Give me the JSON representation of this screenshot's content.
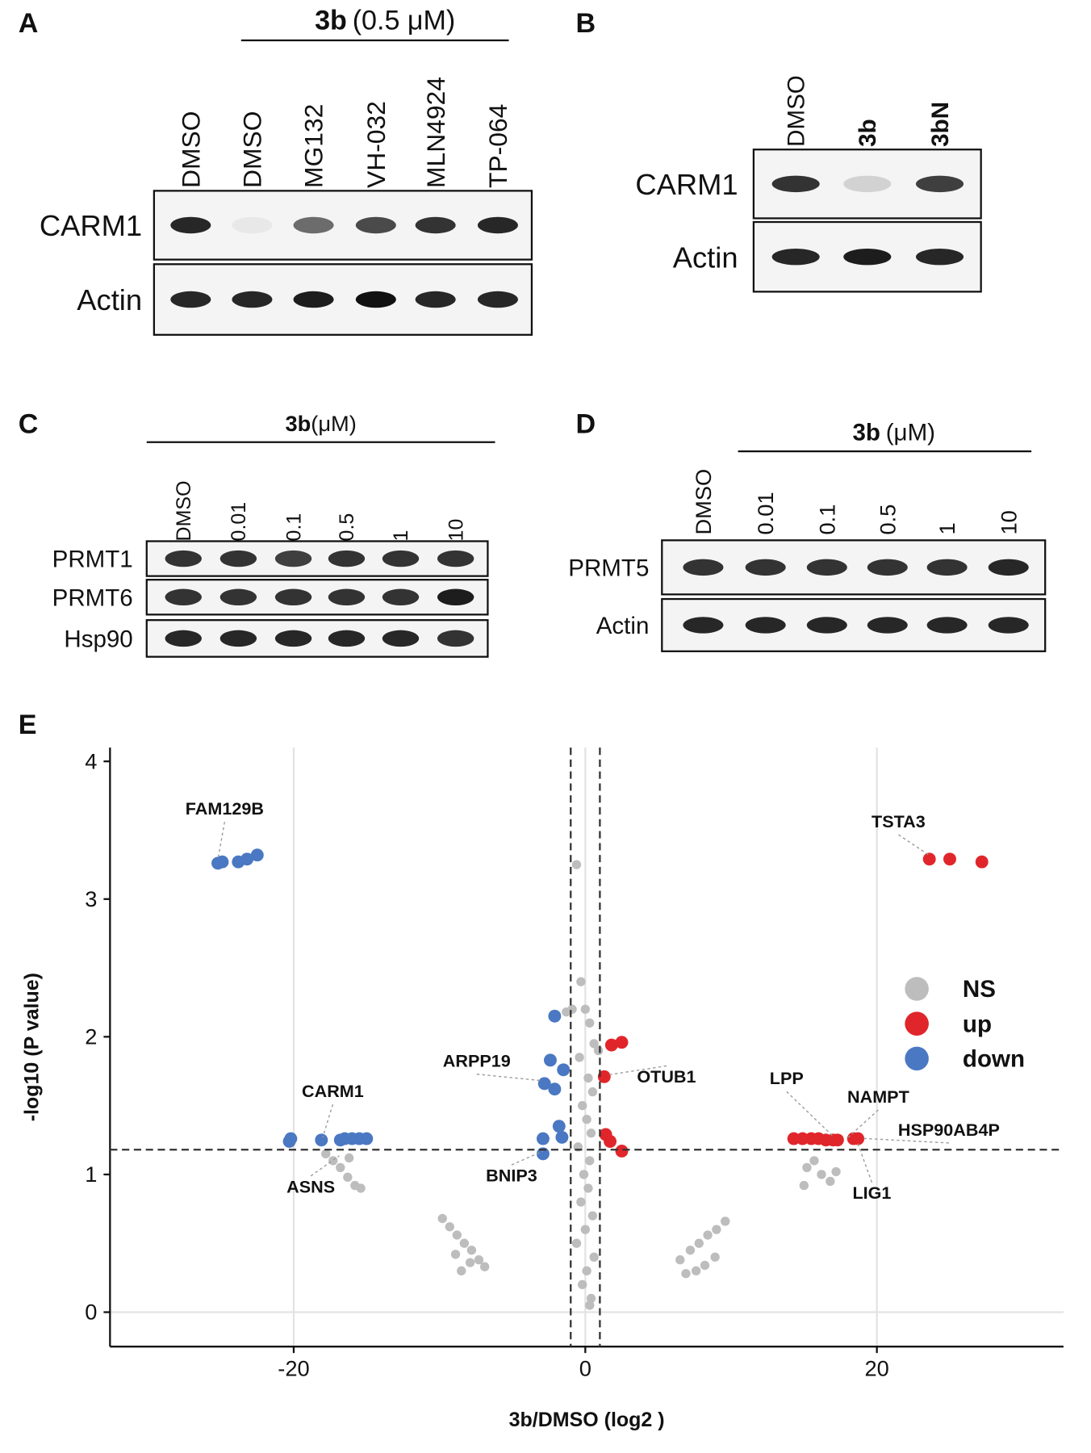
{
  "panels": {
    "A": {
      "letter": "A",
      "header_bold": "3b",
      "header_rest": "(0.5 μM)",
      "lanes": [
        "DMSO",
        "DMSO",
        "MG132",
        "VH-032",
        "MLN4924",
        "TP-064"
      ],
      "rows": [
        "CARM1",
        "Actin"
      ]
    },
    "B": {
      "letter": "B",
      "lanes": [
        "DMSO",
        "3b",
        "3bN"
      ],
      "rows": [
        "CARM1",
        "Actin"
      ]
    },
    "C": {
      "letter": "C",
      "header_bold": "3b",
      "header_rest": "(μM)",
      "lanes": [
        "DMSO",
        "0.01",
        "0.1",
        "0.5",
        "1",
        "10"
      ],
      "rows": [
        "PRMT1",
        "PRMT6",
        "Hsp90"
      ]
    },
    "D": {
      "letter": "D",
      "header_bold": "3b",
      "header_rest": "(μM)",
      "lanes": [
        "DMSO",
        "0.01",
        "0.1",
        "0.5",
        "1",
        "10"
      ],
      "rows": [
        "PRMT5",
        "Actin"
      ]
    }
  },
  "chart_data": {
    "type": "scatter",
    "panel_letter": "E",
    "x_label": "3b/DMSO (log2 )",
    "y_label": "-log10 (P value)",
    "xlim": [
      -32.6,
      32.8
    ],
    "ylim": [
      -0.25,
      4.1
    ],
    "xticks": [
      -20,
      0,
      20
    ],
    "yticks": [
      0,
      1,
      2,
      3,
      4
    ],
    "grid": true,
    "legend": "right",
    "thresholds": {
      "x": [
        -1,
        1
      ],
      "y": 1.18
    },
    "series": [
      {
        "name": "NS",
        "color": "#bdbdbd",
        "x": [
          -0.6,
          -0.3,
          0,
          0.3,
          0.6,
          -0.4,
          0.2,
          0.5,
          -0.2,
          0.1,
          0.4,
          -0.5,
          0.3,
          -0.1,
          0.2,
          -0.3,
          0.5,
          0.0,
          -0.6,
          0.6,
          0.1,
          -0.2,
          0.4,
          0.3,
          -1.3,
          -0.9,
          0.9,
          -9.8,
          -9.3,
          -8.8,
          -8.3,
          -7.8,
          -7.3,
          -6.9,
          -8.5,
          -7.9,
          -8.9,
          6.5,
          7.2,
          7.8,
          8.4,
          9.0,
          9.6,
          7.6,
          8.2,
          8.9,
          6.9,
          -17.8,
          -17.3,
          -16.8,
          -16.3,
          -15.8,
          -16.2,
          -15.4,
          15.2,
          15.7,
          16.2,
          16.8,
          15.0,
          17.2
        ],
        "y": [
          3.25,
          2.4,
          2.2,
          2.1,
          1.95,
          1.85,
          1.7,
          1.6,
          1.5,
          1.4,
          1.3,
          1.2,
          1.1,
          1.0,
          0.9,
          0.8,
          0.7,
          0.6,
          0.5,
          0.4,
          0.3,
          0.2,
          0.1,
          0.05,
          2.18,
          2.2,
          1.9,
          0.68,
          0.62,
          0.56,
          0.5,
          0.45,
          0.38,
          0.33,
          0.3,
          0.36,
          0.42,
          0.38,
          0.45,
          0.5,
          0.56,
          0.6,
          0.66,
          0.3,
          0.34,
          0.4,
          0.28,
          1.15,
          1.1,
          1.05,
          0.98,
          0.92,
          1.12,
          0.9,
          1.05,
          1.1,
          1.0,
          0.95,
          0.92,
          1.02
        ]
      },
      {
        "name": "up",
        "color": "#e0262b",
        "x": [
          23.6,
          25.0,
          27.2,
          1.8,
          2.5,
          1.3,
          1.4,
          1.7,
          2.5,
          14.3,
          14.9,
          15.5,
          16.0,
          16.5,
          17.0,
          17.3,
          18.4,
          18.7
        ],
        "y": [
          3.29,
          3.29,
          3.27,
          1.94,
          1.96,
          1.71,
          1.29,
          1.24,
          1.17,
          1.26,
          1.26,
          1.26,
          1.26,
          1.25,
          1.25,
          1.25,
          1.26,
          1.26
        ]
      },
      {
        "name": "down",
        "color": "#4a78c2",
        "x": [
          -25.2,
          -24.9,
          -23.8,
          -23.2,
          -22.5,
          -20.2,
          -20.3,
          -18.1,
          -16.8,
          -16.5,
          -16.0,
          -15.5,
          -15.0,
          -2.1,
          -2.4,
          -1.5,
          -2.8,
          -2.1,
          -1.8,
          -1.6,
          -2.9,
          -2.9
        ],
        "y": [
          3.26,
          3.27,
          3.27,
          3.29,
          3.32,
          1.26,
          1.24,
          1.25,
          1.25,
          1.26,
          1.26,
          1.26,
          1.26,
          2.15,
          1.83,
          1.76,
          1.66,
          1.62,
          1.35,
          1.27,
          1.26,
          1.15
        ]
      }
    ],
    "annotations": [
      "FAM129B",
      "TSTA3",
      "ARPP19",
      "OTUB1",
      "CARM1",
      "ASNS",
      "BNIP3",
      "LPP",
      "NAMPT",
      "HSP90AB4P",
      "LIG1"
    ]
  }
}
